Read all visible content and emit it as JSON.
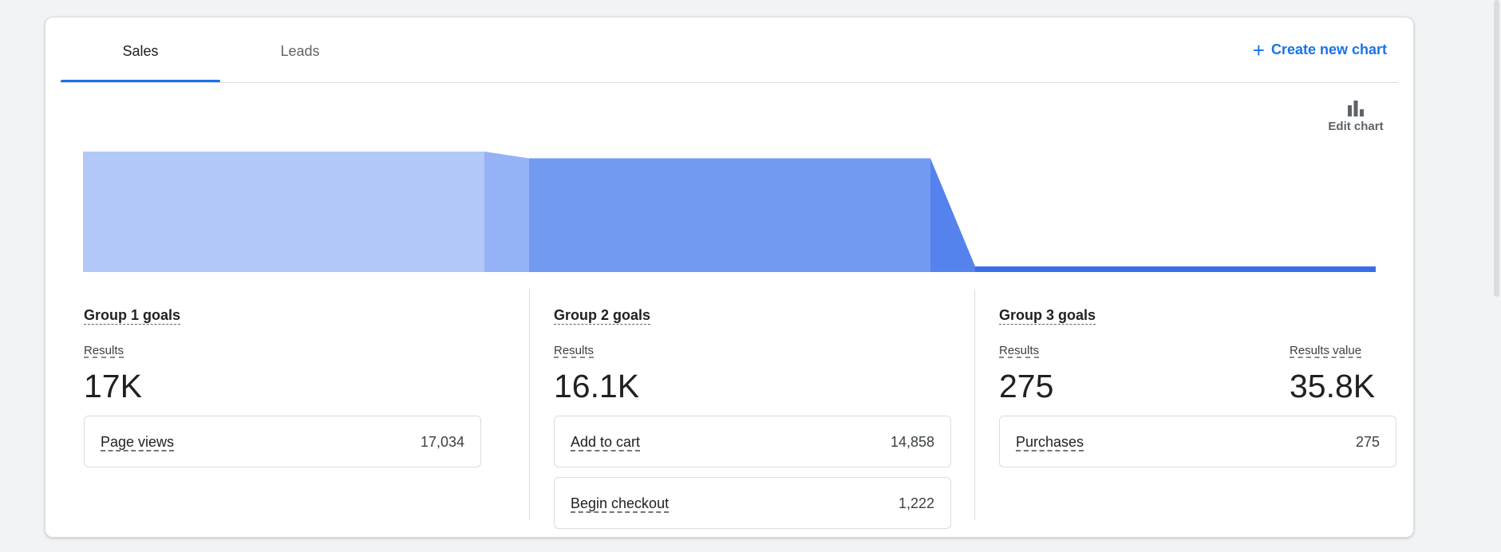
{
  "tabs": [
    {
      "label": "Sales",
      "active": true
    },
    {
      "label": "Leads",
      "active": false
    }
  ],
  "actions": {
    "create_chart_label": "Create new chart",
    "edit_chart_label": "Edit chart"
  },
  "colors": {
    "accent": "#1a73e8",
    "funnel_stage_1": "#b2c8f7",
    "funnel_stage_2": "#729af1",
    "funnel_stage_3": "#3c6ce8",
    "funnel_connector_1": "#94b2f5",
    "funnel_connector_2": "#5682ee"
  },
  "groups": [
    {
      "title": "Group 1 goals",
      "results_label": "Results",
      "results_value": "17K",
      "events": [
        {
          "name": "Page views",
          "count": "17,034"
        }
      ]
    },
    {
      "title": "Group 2 goals",
      "results_label": "Results",
      "results_value": "16.1K",
      "events": [
        {
          "name": "Add to cart",
          "count": "14,858"
        },
        {
          "name": "Begin checkout",
          "count": "1,222"
        }
      ]
    },
    {
      "title": "Group 3 goals",
      "results_label": "Results",
      "results_value": "275",
      "value_label": "Results value",
      "value_value": "35.8K",
      "events": [
        {
          "name": "Purchases",
          "count": "275"
        }
      ]
    }
  ],
  "chart_data": {
    "type": "area",
    "categories": [
      "Group 1 goals",
      "Group 2 goals",
      "Group 3 goals"
    ],
    "values": [
      17034,
      16080,
      275
    ],
    "ylim": [
      0,
      17034
    ],
    "grid": false
  }
}
